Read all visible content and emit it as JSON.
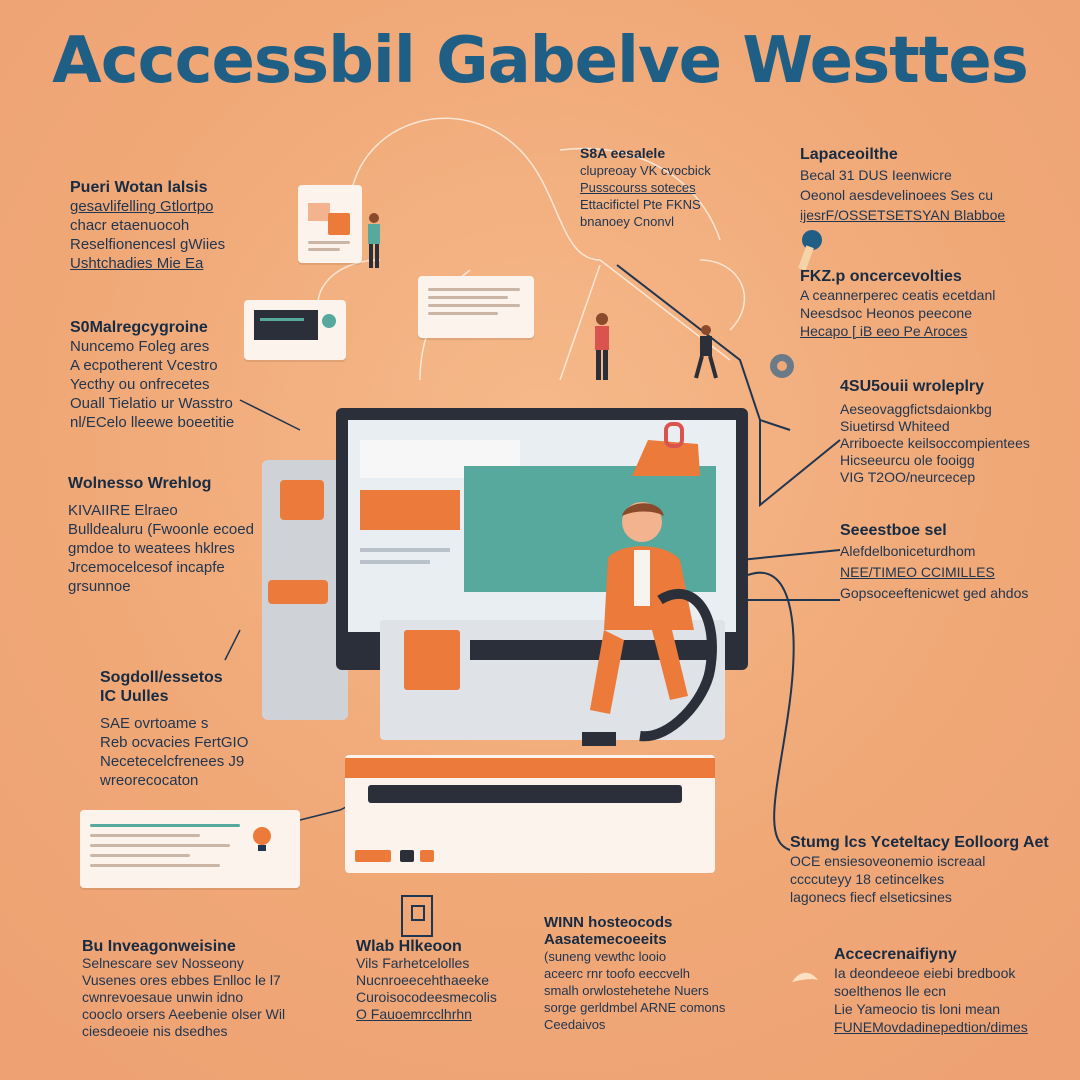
{
  "title": "Acccessbil Gabelve Westtes",
  "blocks": {
    "top_left": [
      "Pueri Wotan lalsis",
      "gesavlifelling Gtlortpo",
      "chacr etaenuocoh",
      "Reselfionencesl gWiies",
      "Ushtchadies Mie Ea"
    ],
    "mid_left": [
      "S0Malregcygroine",
      "Nuncemo Foleg ares",
      "A ecpotherent Vcestro",
      "Yecthy ou onfrecetes",
      "Ouall Tielatio ur Wasstro",
      "nl/ECelo lleewe boeetitie"
    ],
    "left_2": [
      "Wolnesso Wrehlog",
      "KIVAIIRE Elraeo",
      "Bulldealuru (Fwoonle ecoed",
      "gmdoe to weatees hklres",
      "Jrcemocelcesof incapfe",
      "grsunnoe"
    ],
    "left_3": [
      "Sogdoll/essetos",
      "IC Uulles",
      "SAE ovrtoame s",
      "Reb ocvacies FertGIO",
      "Necetecelcfrenees J9",
      "wreorecocaton"
    ],
    "top_mid": [
      "S8A eesalele",
      "clupreoay VK cvocbick",
      "Pusscourss soteces",
      "Ettacifictel Pte FKNS",
      "bnanoey Cnonvl"
    ],
    "top_right": [
      "Lapaceoilthe",
      "Becal 31 DUS Ieenwicre",
      "Oeonol aesdevelinoees Ses cu",
      "ijesrF/OSSETSETSYAN Blabboe"
    ],
    "right_1": [
      "FKZ.p oncercevolties",
      "A ceannerperec ceatis ecetdanl",
      "Neesdsoc Heonos peecone",
      "Hecapo [ iB eeo Pe Aroces"
    ],
    "right_2": [
      "4SU5ouii wroleplry",
      "Aeseovaggfictsdaionkbg",
      "Siuetirsd Whiteed",
      "Arriboecte keilsoccompientees",
      "Hicseeurcu ole fooigg",
      "VIG  T2OO/neurcecep"
    ],
    "right_3": [
      "Seeestboe sel",
      "Alefdelboniceturdhom",
      "NEE/TIMEO CCIMILLES",
      "Gopsoceeftenicwet ged ahdos"
    ],
    "right_4": [
      "Stumg lcs Yceteltacy Eolloorg Aet",
      "OCE ensiesoveonemio iscreaal",
      "ccccuteyy 18 cetincelkes",
      "lagonecs fiecf elseticsines"
    ],
    "bottom_1": [
      "Bu Inveagonweisine",
      "Selnescare sev Nosseony",
      "Vusenes ores ebbes Enlloc le l7",
      "cwnrevoesaue unwin idno",
      "cooclo orsers Aeebenie olser Wil",
      "ciesdeoeie nis dsedhes"
    ],
    "bottom_2": [
      "Wlab  Hlkeoon",
      "Vils Farhetcelolles",
      "Nucnroeecehthaeeke",
      "Curoisocodeesmecolis",
      "O  Fauoemrcclhrhn"
    ],
    "bottom_3": [
      "WINN hosteocods",
      "Aasatemecoeeits",
      "(suneng vewthc looio",
      "aceerc rnr toofo eeccvelh",
      "smalh orwlostehetehe Nuers",
      "sorge gerldmbel ARNE comons",
      "Ceedaivos"
    ],
    "bottom_4": [
      "Accecrenaifiyny",
      "Ia deondeeoe eiebi bredbook",
      "soelthenos lle ecn",
      "Lie Yameocio tis loni mean",
      "FUNEMovdadinepedtion/dimes"
    ]
  },
  "colors": {
    "background": "#f0a877",
    "title": "#1f5f86",
    "ink": "#1f3550",
    "accent_orange": "#ec7a3a",
    "accent_teal": "#56a99c",
    "dark": "#2b2f3a"
  }
}
